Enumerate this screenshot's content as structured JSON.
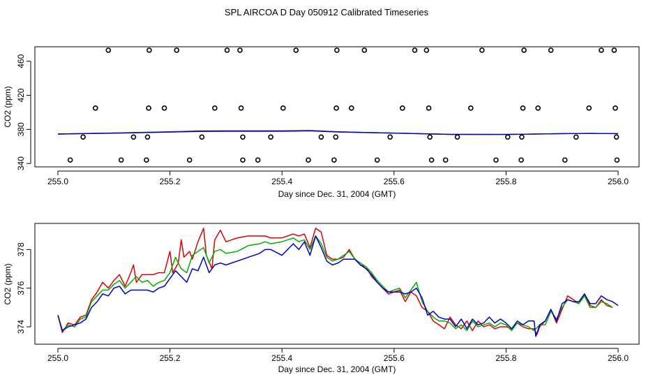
{
  "figure_title": "SPL AIRCOA D  Day 050912  Calibrated Timeseries",
  "colors": {
    "red": "#dd0000",
    "green": "#00b000",
    "blue": "#0000cc",
    "axis": "#000000",
    "marker": "#000000"
  },
  "chart_data": [
    {
      "type": "scatter",
      "id": "top",
      "xlabel": "Day since Dec. 31, 2004 (GMT)",
      "ylabel": "CO2 (ppm)",
      "xlim": [
        255.0,
        256.0
      ],
      "ylim": [
        336,
        477
      ],
      "xticks": [
        255.0,
        255.2,
        255.4,
        255.6,
        255.8,
        256.0
      ],
      "xtick_labels": [
        "255.0",
        "255.2",
        "255.4",
        "255.6",
        "255.8",
        "256.0"
      ],
      "yticks": [
        340,
        380,
        420,
        460
      ],
      "ytick_labels": [
        "340",
        "380",
        "420",
        "460"
      ],
      "markers": [
        {
          "x": 255.09,
          "y": 473
        },
        {
          "x": 255.163,
          "y": 473
        },
        {
          "x": 255.212,
          "y": 473
        },
        {
          "x": 255.302,
          "y": 473
        },
        {
          "x": 255.325,
          "y": 473
        },
        {
          "x": 255.425,
          "y": 473
        },
        {
          "x": 255.498,
          "y": 473
        },
        {
          "x": 255.547,
          "y": 473
        },
        {
          "x": 255.637,
          "y": 473
        },
        {
          "x": 255.658,
          "y": 473
        },
        {
          "x": 255.757,
          "y": 473
        },
        {
          "x": 255.832,
          "y": 473
        },
        {
          "x": 255.88,
          "y": 473
        },
        {
          "x": 255.97,
          "y": 473
        },
        {
          "x": 255.993,
          "y": 473
        },
        {
          "x": 255.067,
          "y": 405
        },
        {
          "x": 255.162,
          "y": 405
        },
        {
          "x": 255.19,
          "y": 405
        },
        {
          "x": 255.28,
          "y": 405
        },
        {
          "x": 255.327,
          "y": 405
        },
        {
          "x": 255.402,
          "y": 405
        },
        {
          "x": 255.497,
          "y": 405
        },
        {
          "x": 255.524,
          "y": 405
        },
        {
          "x": 255.615,
          "y": 405
        },
        {
          "x": 255.662,
          "y": 405
        },
        {
          "x": 255.737,
          "y": 405
        },
        {
          "x": 255.83,
          "y": 405
        },
        {
          "x": 255.857,
          "y": 405
        },
        {
          "x": 255.948,
          "y": 405
        },
        {
          "x": 255.995,
          "y": 405
        },
        {
          "x": 255.045,
          "y": 371
        },
        {
          "x": 255.135,
          "y": 371
        },
        {
          "x": 255.16,
          "y": 371
        },
        {
          "x": 255.257,
          "y": 371
        },
        {
          "x": 255.33,
          "y": 371
        },
        {
          "x": 255.38,
          "y": 371
        },
        {
          "x": 255.47,
          "y": 371
        },
        {
          "x": 255.496,
          "y": 371
        },
        {
          "x": 255.593,
          "y": 371
        },
        {
          "x": 255.664,
          "y": 371
        },
        {
          "x": 255.713,
          "y": 371
        },
        {
          "x": 255.803,
          "y": 371
        },
        {
          "x": 255.828,
          "y": 371
        },
        {
          "x": 255.925,
          "y": 371
        },
        {
          "x": 255.997,
          "y": 371
        },
        {
          "x": 255.022,
          "y": 344
        },
        {
          "x": 255.113,
          "y": 344
        },
        {
          "x": 255.158,
          "y": 344
        },
        {
          "x": 255.235,
          "y": 344
        },
        {
          "x": 255.33,
          "y": 344
        },
        {
          "x": 255.357,
          "y": 344
        },
        {
          "x": 255.447,
          "y": 344
        },
        {
          "x": 255.493,
          "y": 344
        },
        {
          "x": 255.57,
          "y": 344
        },
        {
          "x": 255.667,
          "y": 344
        },
        {
          "x": 255.692,
          "y": 344
        },
        {
          "x": 255.782,
          "y": 344
        },
        {
          "x": 255.827,
          "y": 344
        },
        {
          "x": 255.905,
          "y": 344
        },
        {
          "x": 255.998,
          "y": 344
        }
      ],
      "series": [
        {
          "name": "red",
          "color": "#dd0000",
          "x": [
            255.0,
            255.1,
            255.2,
            255.25,
            255.3,
            255.4,
            255.45,
            255.5,
            255.6,
            255.7,
            255.8,
            255.9,
            255.95,
            256.0
          ],
          "values": [
            374.5,
            375.8,
            377.2,
            378.2,
            378.4,
            378.4,
            378.8,
            377.2,
            375.6,
            374.0,
            374.0,
            375.0,
            375.3,
            375.0
          ]
        },
        {
          "name": "green",
          "color": "#00b000",
          "x": [
            255.0,
            255.1,
            255.2,
            255.25,
            255.3,
            255.4,
            255.45,
            255.5,
            255.6,
            255.7,
            255.8,
            255.9,
            255.95,
            256.0
          ],
          "values": [
            374.5,
            375.7,
            377.0,
            377.9,
            378.0,
            378.0,
            378.5,
            377.1,
            375.7,
            374.2,
            374.0,
            375.0,
            375.3,
            375.0
          ]
        },
        {
          "name": "blue",
          "color": "#0000cc",
          "x": [
            255.0,
            255.1,
            255.2,
            255.25,
            255.3,
            255.4,
            255.45,
            255.5,
            255.6,
            255.7,
            255.8,
            255.9,
            255.95,
            256.0
          ],
          "values": [
            374.5,
            375.5,
            376.8,
            377.6,
            377.8,
            377.8,
            378.3,
            377.0,
            375.6,
            374.2,
            374.0,
            375.0,
            375.3,
            375.0
          ]
        }
      ]
    },
    {
      "type": "line",
      "id": "bottom",
      "xlabel": "Day since Dec. 31, 2004 (GMT)",
      "ylabel": "CO2 (ppm)",
      "xlim": [
        255.0,
        256.0
      ],
      "ylim": [
        373.1,
        379.35
      ],
      "xticks": [
        255.0,
        255.2,
        255.4,
        255.6,
        255.8,
        256.0
      ],
      "xtick_labels": [
        "255.0",
        "255.2",
        "255.4",
        "255.6",
        "255.8",
        "256.0"
      ],
      "yticks": [
        374,
        376,
        378
      ],
      "ytick_labels": [
        "374",
        "376",
        "378"
      ],
      "series": [
        {
          "name": "red",
          "color": "#dd0000",
          "x": [
            255.0,
            255.008,
            255.018,
            255.03,
            255.04,
            255.05,
            255.06,
            255.07,
            255.08,
            255.09,
            255.1,
            255.11,
            255.12,
            255.13,
            255.135,
            255.14,
            255.15,
            255.16,
            255.17,
            255.18,
            255.19,
            255.2,
            255.205,
            255.215,
            255.22,
            255.225,
            255.235,
            255.24,
            255.25,
            255.26,
            255.265,
            255.275,
            255.28,
            255.29,
            255.3,
            255.32,
            255.34,
            255.36,
            255.37,
            255.38,
            255.4,
            255.42,
            255.43,
            255.44,
            255.45,
            255.46,
            255.47,
            255.48,
            255.49,
            255.5,
            255.51,
            255.52,
            255.53,
            255.54,
            255.55,
            255.56,
            255.57,
            255.58,
            255.59,
            255.6,
            255.61,
            255.62,
            255.63,
            255.64,
            255.65,
            255.66,
            255.67,
            255.68,
            255.69,
            255.7,
            255.71,
            255.72,
            255.73,
            255.74,
            255.75,
            255.76,
            255.77,
            255.78,
            255.79,
            255.8,
            255.81,
            255.82,
            255.83,
            255.84,
            255.85,
            255.855,
            255.86,
            255.87,
            255.88,
            255.89,
            255.9,
            255.91,
            255.92,
            255.93,
            255.94,
            255.95,
            255.96,
            255.97,
            255.98,
            255.99
          ],
          "values": [
            374.6,
            373.7,
            374.2,
            374.1,
            374.5,
            374.6,
            375.4,
            375.8,
            376.3,
            376.0,
            376.4,
            376.7,
            376.1,
            376.8,
            377.2,
            376.3,
            376.7,
            376.7,
            376.7,
            376.8,
            376.8,
            377.9,
            376.8,
            377.3,
            378.5,
            377.6,
            377.9,
            377.5,
            378.4,
            379.1,
            377.7,
            377.0,
            378.5,
            379.0,
            378.4,
            378.6,
            378.7,
            378.7,
            378.7,
            378.6,
            378.6,
            378.8,
            378.7,
            378.8,
            378.1,
            379.1,
            378.9,
            377.7,
            377.5,
            377.5,
            377.6,
            378.0,
            377.5,
            377.2,
            377.1,
            376.6,
            376.3,
            376.0,
            375.7,
            375.8,
            375.9,
            375.3,
            375.8,
            375.6,
            375.0,
            374.8,
            374.3,
            374.1,
            373.9,
            374.5,
            374.1,
            373.9,
            374.3,
            373.8,
            374.3,
            374.0,
            374.1,
            373.9,
            374.0,
            374.0,
            373.9,
            374.2,
            374.0,
            373.9,
            373.9,
            373.6,
            374.0,
            374.3,
            374.9,
            374.2,
            374.9,
            375.6,
            375.4,
            375.2,
            375.7,
            375.1,
            375.0,
            375.4,
            375.1,
            375.0
          ]
        },
        {
          "name": "green",
          "color": "#00b000",
          "x": [
            255.0,
            255.008,
            255.018,
            255.03,
            255.04,
            255.05,
            255.06,
            255.07,
            255.08,
            255.09,
            255.1,
            255.11,
            255.12,
            255.13,
            255.14,
            255.15,
            255.16,
            255.17,
            255.18,
            255.19,
            255.2,
            255.21,
            255.22,
            255.23,
            255.24,
            255.25,
            255.26,
            255.27,
            255.28,
            255.29,
            255.3,
            255.32,
            255.34,
            255.36,
            255.37,
            255.38,
            255.4,
            255.42,
            255.43,
            255.44,
            255.45,
            255.46,
            255.47,
            255.48,
            255.49,
            255.5,
            255.51,
            255.52,
            255.53,
            255.54,
            255.55,
            255.56,
            255.57,
            255.58,
            255.59,
            255.6,
            255.61,
            255.62,
            255.63,
            255.64,
            255.65,
            255.66,
            255.67,
            255.68,
            255.69,
            255.7,
            255.71,
            255.72,
            255.73,
            255.74,
            255.75,
            255.76,
            255.77,
            255.78,
            255.79,
            255.8,
            255.81,
            255.82,
            255.83,
            255.84,
            255.85,
            255.86,
            255.87,
            255.88,
            255.89,
            255.9,
            255.91,
            255.92,
            255.93,
            255.94,
            255.95,
            255.96,
            255.97,
            255.98,
            255.99
          ],
          "values": [
            374.6,
            373.8,
            374.1,
            374.0,
            374.4,
            374.5,
            375.3,
            375.6,
            375.9,
            375.9,
            376.2,
            376.4,
            376.0,
            376.3,
            376.6,
            376.3,
            376.4,
            376.1,
            376.3,
            376.4,
            376.8,
            377.6,
            377.0,
            376.8,
            377.7,
            377.9,
            378.1,
            377.3,
            377.9,
            378.0,
            377.8,
            377.9,
            378.2,
            378.3,
            378.4,
            378.3,
            378.4,
            378.6,
            378.4,
            378.5,
            378.0,
            378.7,
            378.3,
            377.6,
            377.4,
            377.5,
            377.7,
            377.9,
            377.5,
            377.3,
            377.1,
            376.8,
            376.4,
            376.1,
            375.8,
            375.9,
            376.0,
            375.5,
            375.9,
            376.3,
            375.3,
            374.8,
            374.5,
            374.3,
            374.3,
            374.2,
            373.9,
            374.1,
            373.8,
            374.3,
            374.0,
            374.1,
            374.2,
            374.0,
            374.2,
            374.1,
            373.8,
            374.2,
            374.1,
            374.0,
            373.8,
            374.1,
            374.1,
            374.8,
            374.4,
            375.0,
            375.4,
            375.3,
            375.2,
            375.6,
            375.0,
            375.0,
            375.3,
            375.2,
            375.0
          ]
        },
        {
          "name": "blue",
          "color": "#0000cc",
          "x": [
            255.0,
            255.008,
            255.018,
            255.03,
            255.04,
            255.05,
            255.06,
            255.07,
            255.08,
            255.09,
            255.1,
            255.11,
            255.12,
            255.13,
            255.14,
            255.15,
            255.16,
            255.17,
            255.18,
            255.19,
            255.2,
            255.21,
            255.22,
            255.23,
            255.24,
            255.25,
            255.26,
            255.27,
            255.28,
            255.29,
            255.3,
            255.32,
            255.34,
            255.36,
            255.37,
            255.38,
            255.4,
            255.42,
            255.43,
            255.44,
            255.45,
            255.46,
            255.47,
            255.48,
            255.49,
            255.5,
            255.51,
            255.52,
            255.53,
            255.54,
            255.55,
            255.56,
            255.57,
            255.58,
            255.59,
            255.6,
            255.61,
            255.62,
            255.63,
            255.64,
            255.65,
            255.66,
            255.67,
            255.68,
            255.69,
            255.7,
            255.71,
            255.72,
            255.73,
            255.74,
            255.75,
            255.76,
            255.77,
            255.78,
            255.79,
            255.8,
            255.81,
            255.82,
            255.83,
            255.84,
            255.85,
            255.853,
            255.86,
            255.87,
            255.88,
            255.89,
            255.9,
            255.91,
            255.92,
            255.93,
            255.94,
            255.95,
            255.96,
            255.97,
            255.98,
            255.99,
            256.0
          ],
          "values": [
            374.6,
            373.8,
            374.0,
            374.1,
            374.2,
            374.4,
            375.0,
            375.3,
            375.7,
            375.6,
            376.0,
            376.1,
            375.7,
            375.9,
            375.9,
            375.9,
            375.9,
            375.8,
            376.0,
            376.1,
            376.5,
            376.9,
            376.6,
            376.3,
            377.0,
            376.9,
            377.6,
            376.8,
            377.2,
            377.3,
            377.2,
            377.4,
            377.6,
            377.8,
            378.0,
            378.0,
            377.7,
            378.3,
            378.0,
            378.4,
            377.7,
            378.7,
            378.1,
            377.4,
            377.2,
            377.3,
            377.5,
            377.5,
            377.5,
            377.2,
            377.0,
            376.7,
            376.3,
            376.0,
            375.8,
            375.8,
            375.8,
            375.7,
            375.8,
            376.0,
            375.5,
            374.6,
            374.8,
            374.5,
            374.4,
            374.4,
            374.0,
            374.4,
            373.9,
            374.4,
            374.1,
            374.2,
            374.5,
            374.2,
            374.4,
            374.2,
            373.9,
            374.3,
            374.1,
            374.3,
            374.3,
            373.5,
            374.1,
            374.3,
            374.9,
            374.3,
            375.2,
            375.4,
            375.3,
            375.3,
            375.7,
            375.2,
            375.2,
            375.6,
            375.4,
            375.3,
            375.1
          ]
        }
      ]
    }
  ]
}
